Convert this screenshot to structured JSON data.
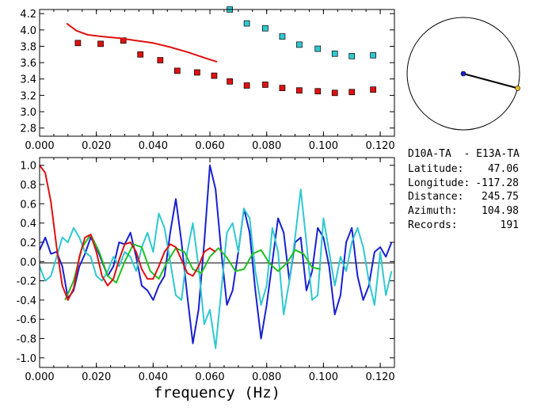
{
  "chart_data": [
    {
      "id": "dispersion",
      "type": "scatter",
      "xlim": [
        0.0,
        0.125
      ],
      "ylim": [
        2.7,
        4.25
      ],
      "xticks": [
        "0.000",
        "0.020",
        "0.040",
        "0.060",
        "0.080",
        "0.100",
        "0.120"
      ],
      "xtick_values": [
        0.0,
        0.02,
        0.04,
        0.06,
        0.08,
        0.1,
        0.12
      ],
      "yticks": [
        "2.8",
        "3.0",
        "3.2",
        "3.4",
        "3.6",
        "3.8",
        "4.0",
        "4.2"
      ],
      "ytick_values": [
        2.8,
        3.0,
        3.2,
        3.4,
        3.6,
        3.8,
        4.0,
        4.2
      ],
      "xlabel": "",
      "ylabel": "",
      "series": [
        {
          "color": "#e01010",
          "marker": "square",
          "x": [
            0.0135,
            0.0215,
            0.0295,
            0.0355,
            0.0425,
            0.0485,
            0.0555,
            0.0615,
            0.067,
            0.073,
            0.0795,
            0.0855,
            0.0915,
            0.098,
            0.104,
            0.11,
            0.1175
          ],
          "y": [
            3.84,
            3.83,
            3.87,
            3.7,
            3.63,
            3.5,
            3.48,
            3.44,
            3.37,
            3.32,
            3.33,
            3.29,
            3.26,
            3.25,
            3.23,
            3.24,
            3.27
          ]
        },
        {
          "color": "#30c8d0",
          "marker": "square",
          "x": [
            0.067,
            0.073,
            0.0795,
            0.0855,
            0.0915,
            0.098,
            0.104,
            0.11,
            0.1175
          ],
          "y": [
            4.25,
            4.08,
            4.02,
            3.92,
            3.82,
            3.77,
            3.71,
            3.68,
            3.69
          ]
        },
        {
          "color": "#e01010",
          "marker": "line",
          "x": [
            0.0095,
            0.013,
            0.017,
            0.022,
            0.028,
            0.034,
            0.04,
            0.046,
            0.052,
            0.058,
            0.0625
          ],
          "y": [
            4.08,
            3.99,
            3.94,
            3.92,
            3.9,
            3.87,
            3.84,
            3.79,
            3.73,
            3.66,
            3.61
          ]
        }
      ]
    },
    {
      "id": "coherency",
      "type": "line",
      "xlim": [
        0.0,
        0.125
      ],
      "ylim": [
        -1.1,
        1.08
      ],
      "xticks": [
        "0.000",
        "0.020",
        "0.040",
        "0.060",
        "0.080",
        "0.100",
        "0.120"
      ],
      "xtick_values": [
        0.0,
        0.02,
        0.04,
        0.06,
        0.08,
        0.1,
        0.12
      ],
      "yticks": [
        "1.0",
        "0.8",
        "0.6",
        "0.4",
        "0.2",
        "0.0",
        "-0.2",
        "-0.4",
        "-0.6",
        "-0.8",
        "-1.0"
      ],
      "ytick_values": [
        1.0,
        0.8,
        0.6,
        0.4,
        0.2,
        0.0,
        -0.2,
        -0.4,
        -0.6,
        -0.8,
        -1.0
      ],
      "xlabel": "frequency (Hz)",
      "series": [
        {
          "color": "#1820d0",
          "x": [
            0.0,
            0.002,
            0.004,
            0.006,
            0.008,
            0.01,
            0.012,
            0.014,
            0.016,
            0.018,
            0.02,
            0.022,
            0.024,
            0.026,
            0.028,
            0.03,
            0.032,
            0.034,
            0.036,
            0.038,
            0.04,
            0.042,
            0.044,
            0.046,
            0.048,
            0.05,
            0.052,
            0.054,
            0.056,
            0.058,
            0.06,
            0.062,
            0.064,
            0.066,
            0.068,
            0.07,
            0.072,
            0.074,
            0.076,
            0.078,
            0.08,
            0.082,
            0.084,
            0.086,
            0.088,
            0.09,
            0.092,
            0.094,
            0.096,
            0.098,
            0.1,
            0.102,
            0.104,
            0.106,
            0.108,
            0.11,
            0.112,
            0.114,
            0.116,
            0.118,
            0.12,
            0.122,
            0.124
          ],
          "y": [
            0.12,
            0.25,
            0.08,
            0.1,
            -0.05,
            -0.38,
            -0.3,
            -0.05,
            0.08,
            0.25,
            0.15,
            0.0,
            -0.15,
            -0.05,
            0.2,
            0.18,
            0.3,
            0.05,
            -0.25,
            -0.3,
            -0.4,
            -0.25,
            -0.15,
            0.3,
            0.65,
            0.2,
            -0.35,
            -0.85,
            -0.5,
            0.2,
            1.0,
            0.75,
            0.1,
            -0.45,
            -0.3,
            0.1,
            0.55,
            0.3,
            -0.3,
            -0.8,
            -0.45,
            0.0,
            0.45,
            0.3,
            -0.2,
            0.2,
            0.25,
            -0.3,
            -0.1,
            0.35,
            0.25,
            -0.05,
            -0.55,
            -0.35,
            0.2,
            0.35,
            -0.15,
            -0.4,
            -0.25,
            0.1,
            0.15,
            0.05,
            0.2
          ]
        },
        {
          "color": "#30c8d0",
          "x": [
            0.0,
            0.002,
            0.004,
            0.006,
            0.008,
            0.01,
            0.012,
            0.014,
            0.016,
            0.018,
            0.02,
            0.022,
            0.024,
            0.026,
            0.028,
            0.03,
            0.032,
            0.034,
            0.036,
            0.038,
            0.04,
            0.042,
            0.044,
            0.046,
            0.048,
            0.05,
            0.052,
            0.054,
            0.056,
            0.058,
            0.06,
            0.062,
            0.064,
            0.066,
            0.068,
            0.07,
            0.072,
            0.074,
            0.076,
            0.078,
            0.08,
            0.082,
            0.084,
            0.086,
            0.088,
            0.09,
            0.092,
            0.094,
            0.096,
            0.098,
            0.1,
            0.102,
            0.104,
            0.106,
            0.108,
            0.11,
            0.112,
            0.114,
            0.116,
            0.118,
            0.12,
            0.122,
            0.124
          ],
          "y": [
            -0.05,
            -0.2,
            -0.15,
            0.05,
            0.25,
            0.2,
            0.35,
            0.25,
            0.1,
            0.05,
            -0.15,
            -0.2,
            -0.1,
            0.05,
            -0.05,
            0.1,
            0.05,
            -0.1,
            0.15,
            0.3,
            0.1,
            0.5,
            0.35,
            0.0,
            -0.35,
            -0.4,
            0.1,
            0.4,
            -0.05,
            -0.65,
            -0.5,
            -0.9,
            -0.3,
            0.3,
            0.4,
            0.1,
            0.55,
            0.45,
            -0.1,
            -0.45,
            -0.25,
            0.35,
            0.1,
            -0.55,
            -0.2,
            0.25,
            0.75,
            0.2,
            -0.4,
            -0.35,
            0.45,
            0.1,
            -0.25,
            0.05,
            -0.1,
            0.2,
            0.35,
            0.15,
            -0.2,
            -0.45,
            0.1,
            -0.35,
            -0.1
          ]
        },
        {
          "color": "#20c020",
          "x": [
            0.009,
            0.012,
            0.015,
            0.018,
            0.021,
            0.024,
            0.027,
            0.03,
            0.033,
            0.036,
            0.039,
            0.042,
            0.045,
            0.048,
            0.051,
            0.054,
            0.057,
            0.06,
            0.063,
            0.066,
            0.069,
            0.072,
            0.075,
            0.078,
            0.081,
            0.084,
            0.087,
            0.09,
            0.093,
            0.096,
            0.099
          ],
          "y": [
            -0.4,
            -0.2,
            0.15,
            0.28,
            0.1,
            -0.15,
            -0.22,
            0.0,
            0.18,
            0.15,
            -0.1,
            -0.18,
            0.0,
            0.14,
            0.1,
            -0.08,
            -0.12,
            0.05,
            0.14,
            0.04,
            -0.1,
            -0.08,
            0.08,
            0.12,
            -0.02,
            -0.1,
            -0.02,
            0.12,
            0.08,
            -0.06,
            -0.08
          ]
        },
        {
          "color": "#e01010",
          "x": [
            0.0,
            0.002,
            0.004,
            0.006,
            0.008,
            0.01,
            0.012,
            0.014,
            0.016,
            0.018,
            0.02,
            0.022,
            0.024,
            0.026,
            0.028,
            0.03,
            0.032,
            0.034,
            0.036,
            0.038,
            0.04,
            0.042,
            0.044,
            0.046,
            0.048,
            0.05,
            0.052,
            0.054,
            0.056,
            0.058,
            0.06,
            0.062
          ],
          "y": [
            1.0,
            0.92,
            0.62,
            0.15,
            -0.25,
            -0.4,
            -0.28,
            0.05,
            0.25,
            0.28,
            0.1,
            -0.15,
            -0.25,
            -0.18,
            0.02,
            0.18,
            0.2,
            0.1,
            -0.08,
            -0.18,
            -0.18,
            -0.05,
            0.1,
            0.18,
            0.15,
            0.02,
            -0.12,
            -0.15,
            -0.05,
            0.1,
            0.14,
            0.1
          ]
        }
      ]
    }
  ],
  "compass": {
    "azimuth_deg": 104.98,
    "center_color": "#1820d0",
    "end_color": "#f0c020"
  },
  "info": {
    "station_pair": "D10A-TA  - E13A-TA",
    "latitude_label": "Latitude:",
    "latitude_value": "47.06",
    "longitude_label": "Longitude:",
    "longitude_value": "-117.28",
    "distance_label": "Distance:",
    "distance_value": "245.75",
    "azimuth_label": "Azimuth:",
    "azimuth_value": "104.98",
    "records_label": "Records:",
    "records_value": "191"
  }
}
